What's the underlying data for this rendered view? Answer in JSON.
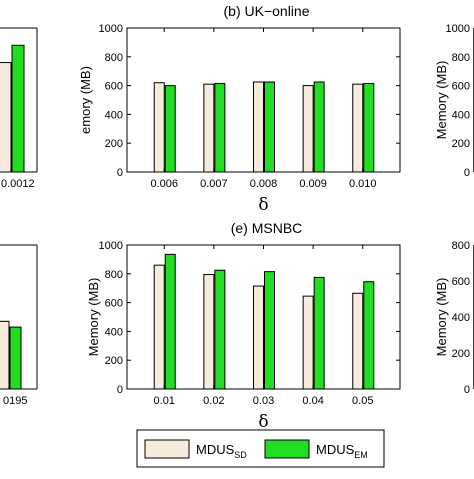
{
  "colors": {
    "sd": "#f7ebdc",
    "em": "#22dd22",
    "edge": "#000000"
  },
  "legend": {
    "sd": {
      "base": "MDUS",
      "sub": "SD"
    },
    "em": {
      "base": "MDUS",
      "sub": "EM"
    }
  },
  "chart_data": [
    {
      "panel": "top-left (partial)",
      "type": "bar",
      "tick_labels": [
        "0.0012"
      ],
      "series": [
        {
          "name": "MDUS_SD",
          "values": [
            760
          ]
        },
        {
          "name": "MDUS_EM",
          "values": [
            880
          ]
        }
      ],
      "ylim": [
        0,
        1000
      ]
    },
    {
      "panel": "top-center",
      "type": "bar",
      "title": "(b) UK−online",
      "categories": [
        "0.006",
        "0.007",
        "0.008",
        "0.009",
        "0.010"
      ],
      "series": [
        {
          "name": "MDUS_SD",
          "values": [
            620,
            610,
            625,
            600,
            610
          ]
        },
        {
          "name": "MDUS_EM",
          "values": [
            600,
            615,
            625,
            625,
            615
          ]
        }
      ],
      "xlabel": "δ",
      "ylabel": "Memory (MB)",
      "ylabel_visible": "emory (MB)",
      "yticks": [
        "0",
        "200",
        "400",
        "600",
        "800",
        "1000"
      ],
      "ylim": [
        0,
        1000
      ],
      "legend": "bottom-center",
      "grid": false
    },
    {
      "panel": "top-right (partial)",
      "type": "bar",
      "ylabel": "Memory (MB)",
      "yticks": [
        "0",
        "200",
        "400",
        "600",
        "800",
        "1000"
      ],
      "ylim": [
        0,
        1000
      ]
    },
    {
      "panel": "bottom-left (partial)",
      "type": "bar",
      "tick_labels": [
        "0195"
      ],
      "series": [
        {
          "name": "MDUS_SD",
          "values": [
            470
          ]
        },
        {
          "name": "MDUS_EM",
          "values": [
            430
          ]
        }
      ]
    },
    {
      "panel": "bottom-center",
      "type": "bar",
      "title": "(e) MSNBC",
      "categories": [
        "0.01",
        "0.02",
        "0.03",
        "0.04",
        "0.05"
      ],
      "series": [
        {
          "name": "MDUS_SD",
          "values": [
            860,
            795,
            715,
            645,
            665
          ]
        },
        {
          "name": "MDUS_EM",
          "values": [
            935,
            825,
            815,
            775,
            745
          ]
        }
      ],
      "xlabel": "δ",
      "ylabel": "Memory (MB)",
      "yticks": [
        "0",
        "200",
        "400",
        "600",
        "800",
        "1000"
      ],
      "ylim": [
        0,
        1000
      ],
      "legend": "bottom-center",
      "grid": false
    },
    {
      "panel": "bottom-right (partial)",
      "type": "bar",
      "ylabel": "Memory (MB)",
      "yticks": [
        "0",
        "200",
        "400",
        "600",
        "800"
      ],
      "ylim": [
        0,
        800
      ]
    }
  ]
}
